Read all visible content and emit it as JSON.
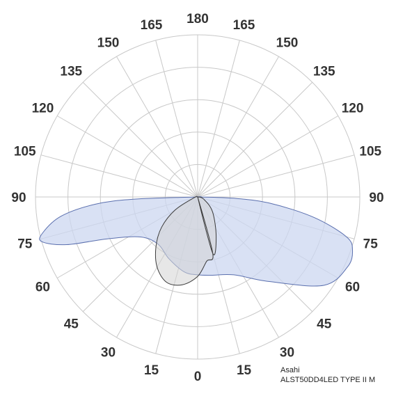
{
  "chart_data": {
    "type": "polar",
    "angle_tick_labels": {
      "left": [
        "0",
        "15",
        "30",
        "45",
        "60",
        "75",
        "90",
        "105",
        "120",
        "135",
        "150",
        "165",
        "180"
      ],
      "right": [
        "15",
        "30",
        "45",
        "60",
        "75",
        "90",
        "105",
        "120",
        "135",
        "150",
        "165"
      ]
    },
    "rings": 5,
    "grid": true,
    "annotation": {
      "manufacturer": "Asahi",
      "model": "ALST50DD4LED TYPE II M"
    },
    "colors": {
      "series_a_fill": "#ccd7f0",
      "series_a_stroke": "#5a6fae",
      "series_b_fill": "#d3d3d3",
      "series_b_stroke": "#3a3a3a"
    },
    "series": [
      {
        "points": [
          {
            "angle": -90,
            "r": 0.0
          },
          {
            "angle": -88,
            "r": 0.39
          },
          {
            "angle": -86,
            "r": 0.63
          },
          {
            "angle": -82,
            "r": 0.85
          },
          {
            "angle": -77,
            "r": 0.98
          },
          {
            "angle": -74,
            "r": 1.0
          },
          {
            "angle": -70,
            "r": 0.86
          },
          {
            "angle": -65,
            "r": 0.61
          },
          {
            "angle": -55,
            "r": 0.43
          },
          {
            "angle": -40,
            "r": 0.38
          },
          {
            "angle": -25,
            "r": 0.42
          },
          {
            "angle": -10,
            "r": 0.47
          },
          {
            "angle": 0,
            "r": 0.48
          },
          {
            "angle": 10,
            "r": 0.49
          },
          {
            "angle": 25,
            "r": 0.53
          },
          {
            "angle": 40,
            "r": 0.68
          },
          {
            "angle": 55,
            "r": 0.95
          },
          {
            "angle": 65,
            "r": 1.02
          },
          {
            "angle": 71,
            "r": 1.01
          },
          {
            "angle": 75,
            "r": 0.95
          },
          {
            "angle": 80,
            "r": 0.73
          },
          {
            "angle": 85,
            "r": 0.45
          },
          {
            "angle": 88,
            "r": 0.22
          },
          {
            "angle": 90,
            "r": 0.0
          }
        ]
      },
      {
        "points": [
          {
            "angle": 0,
            "r": 0.0
          },
          {
            "angle": 15,
            "r": 0.36
          },
          {
            "angle": 25,
            "r": 0.27
          },
          {
            "angle": 45,
            "r": 0.13
          },
          {
            "angle": 70,
            "r": 0.04
          },
          {
            "angle": 90,
            "r": 0.0
          },
          {
            "angle": -80,
            "r": 0.02
          },
          {
            "angle": -60,
            "r": 0.16
          },
          {
            "angle": -50,
            "r": 0.29
          },
          {
            "angle": -40,
            "r": 0.4
          },
          {
            "angle": -30,
            "r": 0.5
          },
          {
            "angle": -20,
            "r": 0.56
          },
          {
            "angle": -10,
            "r": 0.55
          },
          {
            "angle": 0,
            "r": 0.49
          },
          {
            "angle": 8,
            "r": 0.4
          },
          {
            "angle": 15,
            "r": 0.36
          }
        ]
      }
    ]
  }
}
